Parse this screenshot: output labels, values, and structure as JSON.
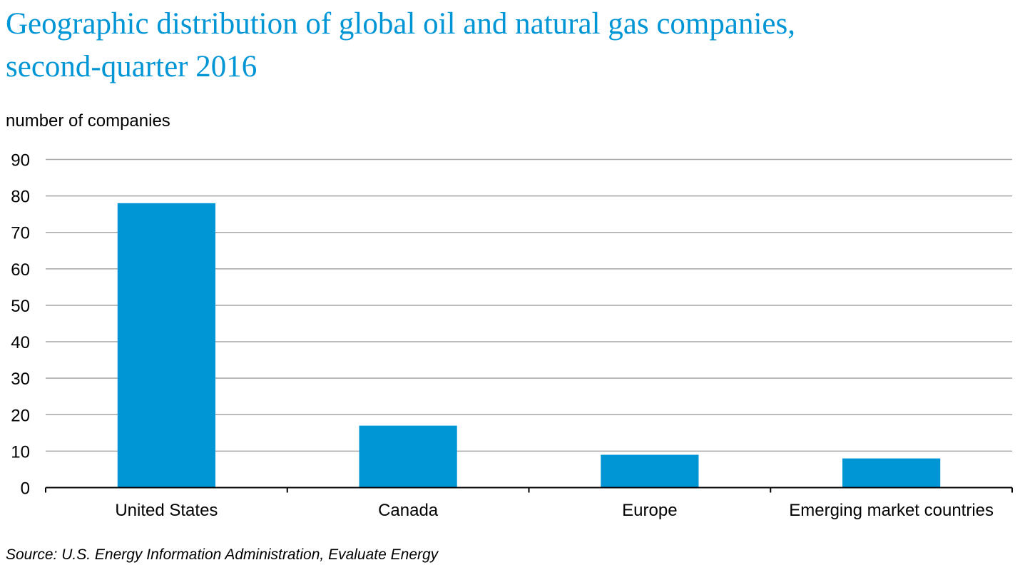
{
  "chart_data": {
    "type": "bar",
    "title": "Geographic distribution of global oil and natural gas companies,\nsecond-quarter 2016",
    "ylabel": "number of companies",
    "xlabel": "",
    "categories": [
      "United States",
      "Canada",
      "Europe",
      "Emerging market countries"
    ],
    "values": [
      78,
      17,
      9,
      8
    ],
    "ylim": [
      0,
      90
    ],
    "yticks": [
      0,
      10,
      20,
      30,
      40,
      50,
      60,
      70,
      80,
      90
    ],
    "grid": true,
    "legend": "none",
    "bar_color": "#0096d6",
    "gridline_color": "#a6a6a6",
    "source": "Source: U.S. Energy Information Administration, Evaluate Energy"
  }
}
